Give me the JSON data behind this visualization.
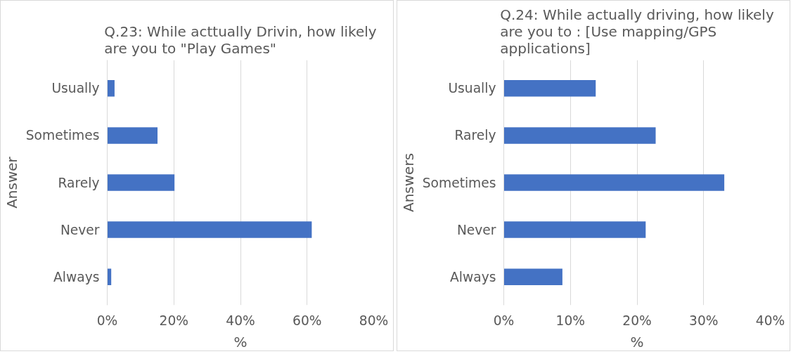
{
  "chart_data": [
    {
      "type": "bar",
      "orientation": "horizontal",
      "title": "Q.23: While acttually Drivin, how likely are you to \"Play Games\"",
      "xlabel": "%",
      "ylabel": "Answer",
      "categories": [
        "Usually",
        "Sometimes",
        "Rarely",
        "Never",
        "Always"
      ],
      "values": [
        2.2,
        15.1,
        20.2,
        61.4,
        1.2
      ],
      "color": "#4472c4",
      "xlim": [
        0,
        80
      ],
      "xticks": [
        {
          "value": 0,
          "label": "0%"
        },
        {
          "value": 20,
          "label": "20%"
        },
        {
          "value": 40,
          "label": "40%"
        },
        {
          "value": 60,
          "label": "60%"
        },
        {
          "value": 80,
          "label": "80%"
        }
      ],
      "grid": "x"
    },
    {
      "type": "bar",
      "orientation": "horizontal",
      "title": "Q.24: While actually driving, how likely are you to : [Use mapping/GPS applications]",
      "xlabel": "%",
      "ylabel": "Answers",
      "categories": [
        "Usually",
        "Rarely",
        "Sometimes",
        "Never",
        "Always"
      ],
      "values": [
        13.8,
        22.8,
        33.1,
        21.3,
        8.8
      ],
      "color": "#4472c4",
      "xlim": [
        0,
        40
      ],
      "xticks": [
        {
          "value": 0,
          "label": "0%"
        },
        {
          "value": 10,
          "label": "10%"
        },
        {
          "value": 20,
          "label": "20%"
        },
        {
          "value": 30,
          "label": "30%"
        },
        {
          "value": 40,
          "label": "40%"
        }
      ],
      "grid": "x"
    }
  ]
}
